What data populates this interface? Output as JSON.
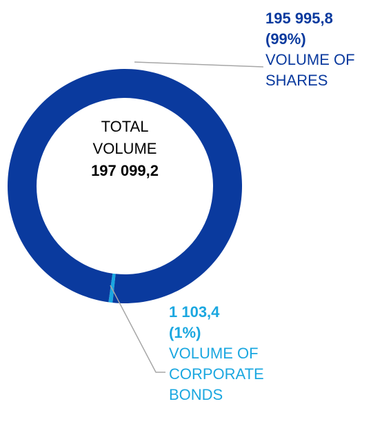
{
  "chart_data": {
    "type": "donut",
    "categories": [
      "VOLUME OF SHARES",
      "VOLUME OF CORPORATE BONDS"
    ],
    "values": [
      195995.8,
      1103.4
    ],
    "value_labels": [
      "195 995,8",
      "1 103,4"
    ],
    "share_labels": [
      "(99%)",
      "(1%)"
    ],
    "colors": [
      "#0a3a9e",
      "#1aa7e0"
    ],
    "center_text": "TOTAL VOLUME",
    "total": 197099.2,
    "total_label": "197 099,2"
  }
}
